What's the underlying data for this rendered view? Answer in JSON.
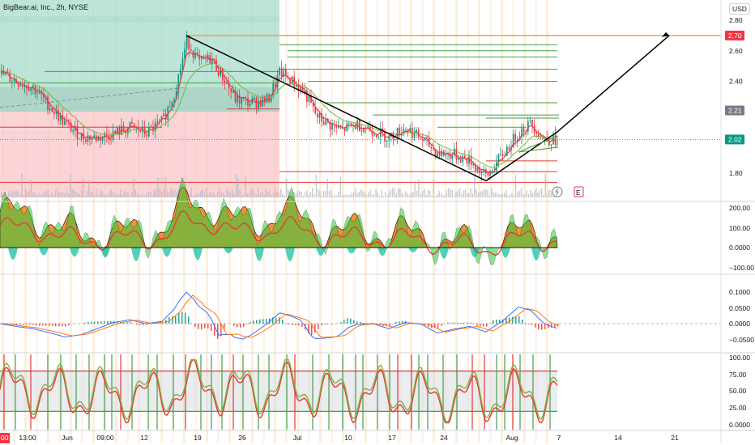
{
  "header": {
    "title": "BigBear.ai, Inc., 2h, NYSE",
    "currency": "USD"
  },
  "price_axis": {
    "ticks": [
      "2.80",
      "2.60",
      "2.40",
      "1.80"
    ],
    "tag_target": "2.70",
    "tag_mid": "2.21",
    "tag_last": "2.02"
  },
  "indicator_axes": {
    "panel1": [
      "200.00",
      "100.00",
      "0.0000",
      "−100.00"
    ],
    "panel2": [
      "0.1000",
      "0.0500",
      "0.0000",
      "−0.0500"
    ],
    "panel3": [
      "100.00",
      "75.00",
      "50.00",
      "25.00",
      "0.0000"
    ]
  },
  "time_axis": {
    "labels": [
      "13:00",
      "Jun",
      "09:00",
      "12",
      "19",
      "26",
      "Jul",
      "10",
      "17",
      "24",
      "Aug",
      "7",
      "14",
      "21"
    ],
    "left_badge": "00"
  },
  "markers": {
    "earnings": "E"
  },
  "colors": {
    "up": "#26a69a",
    "down": "#ef5350",
    "ema": "#f23645",
    "target_line": "#f5a05a",
    "trend": "#000000"
  },
  "chart_data": {
    "type": "candlestick",
    "title": "BigBear.ai, Inc., 2h, NYSE",
    "ylim": [
      1.65,
      2.85
    ],
    "close_path": [
      [
        0,
        2.45
      ],
      [
        20,
        2.4
      ],
      [
        40,
        2.36
      ],
      [
        60,
        2.24
      ],
      [
        80,
        2.12
      ],
      [
        100,
        2.04
      ],
      [
        120,
        2.03
      ],
      [
        140,
        2.06
      ],
      [
        160,
        2.1
      ],
      [
        180,
        2.06
      ],
      [
        200,
        2.14
      ],
      [
        215,
        2.33
      ],
      [
        230,
        2.67
      ],
      [
        245,
        2.52
      ],
      [
        260,
        2.55
      ],
      [
        275,
        2.42
      ],
      [
        290,
        2.28
      ],
      [
        310,
        2.26
      ],
      [
        330,
        2.28
      ],
      [
        345,
        2.46
      ],
      [
        360,
        2.4
      ],
      [
        375,
        2.33
      ],
      [
        390,
        2.17
      ],
      [
        405,
        2.12
      ],
      [
        420,
        2.08
      ],
      [
        440,
        2.12
      ],
      [
        460,
        2.08
      ],
      [
        480,
        2.03
      ],
      [
        500,
        2.1
      ],
      [
        520,
        2.02
      ],
      [
        540,
        1.93
      ],
      [
        560,
        1.92
      ],
      [
        580,
        1.88
      ],
      [
        600,
        1.77
      ],
      [
        610,
        1.85
      ],
      [
        625,
        1.96
      ],
      [
        640,
        2.07
      ],
      [
        655,
        2.13
      ],
      [
        670,
        2.02
      ],
      [
        688,
        2.02
      ]
    ],
    "horizontal_levels": [
      2.7,
      2.64,
      2.6,
      2.56,
      2.48,
      2.4,
      2.26,
      2.18,
      2.16,
      2.09,
      1.88,
      1.81,
      1.74
    ],
    "projection": {
      "from": [
        595,
        1.75
      ],
      "to": [
        688,
        2.07
      ],
      "target": 2.7
    }
  }
}
